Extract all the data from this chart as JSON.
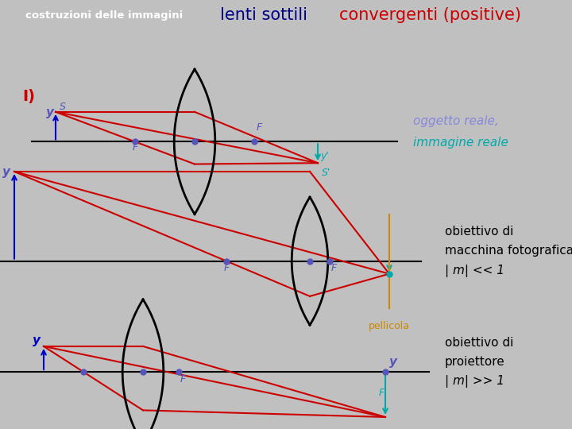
{
  "bg_color": "#c0c0c0",
  "header_left_bg": "#7777aa",
  "header_left_text": "costruzioni delle immagini",
  "header_left_text_color": "#ffffff",
  "header_right_bg": "#ffffaa",
  "header_right_text_blue": "lenti sottili ",
  "header_right_text_red": "convergenti (positive)",
  "main_bg": "#cccccc",
  "ray_color": "#cc0000",
  "axis_color": "#000000",
  "lens_color": "#000000",
  "dot_color": "#5555bb",
  "img_color": "#00aaaa",
  "pellicola_color": "#cc8800",
  "label_I_color": "#cc0000",
  "text_right1_color": "#8888dd",
  "text_right2_color": "#00aaaa",
  "obj_arrow_color": "#0000cc",
  "blue_label_color": "#5555bb"
}
